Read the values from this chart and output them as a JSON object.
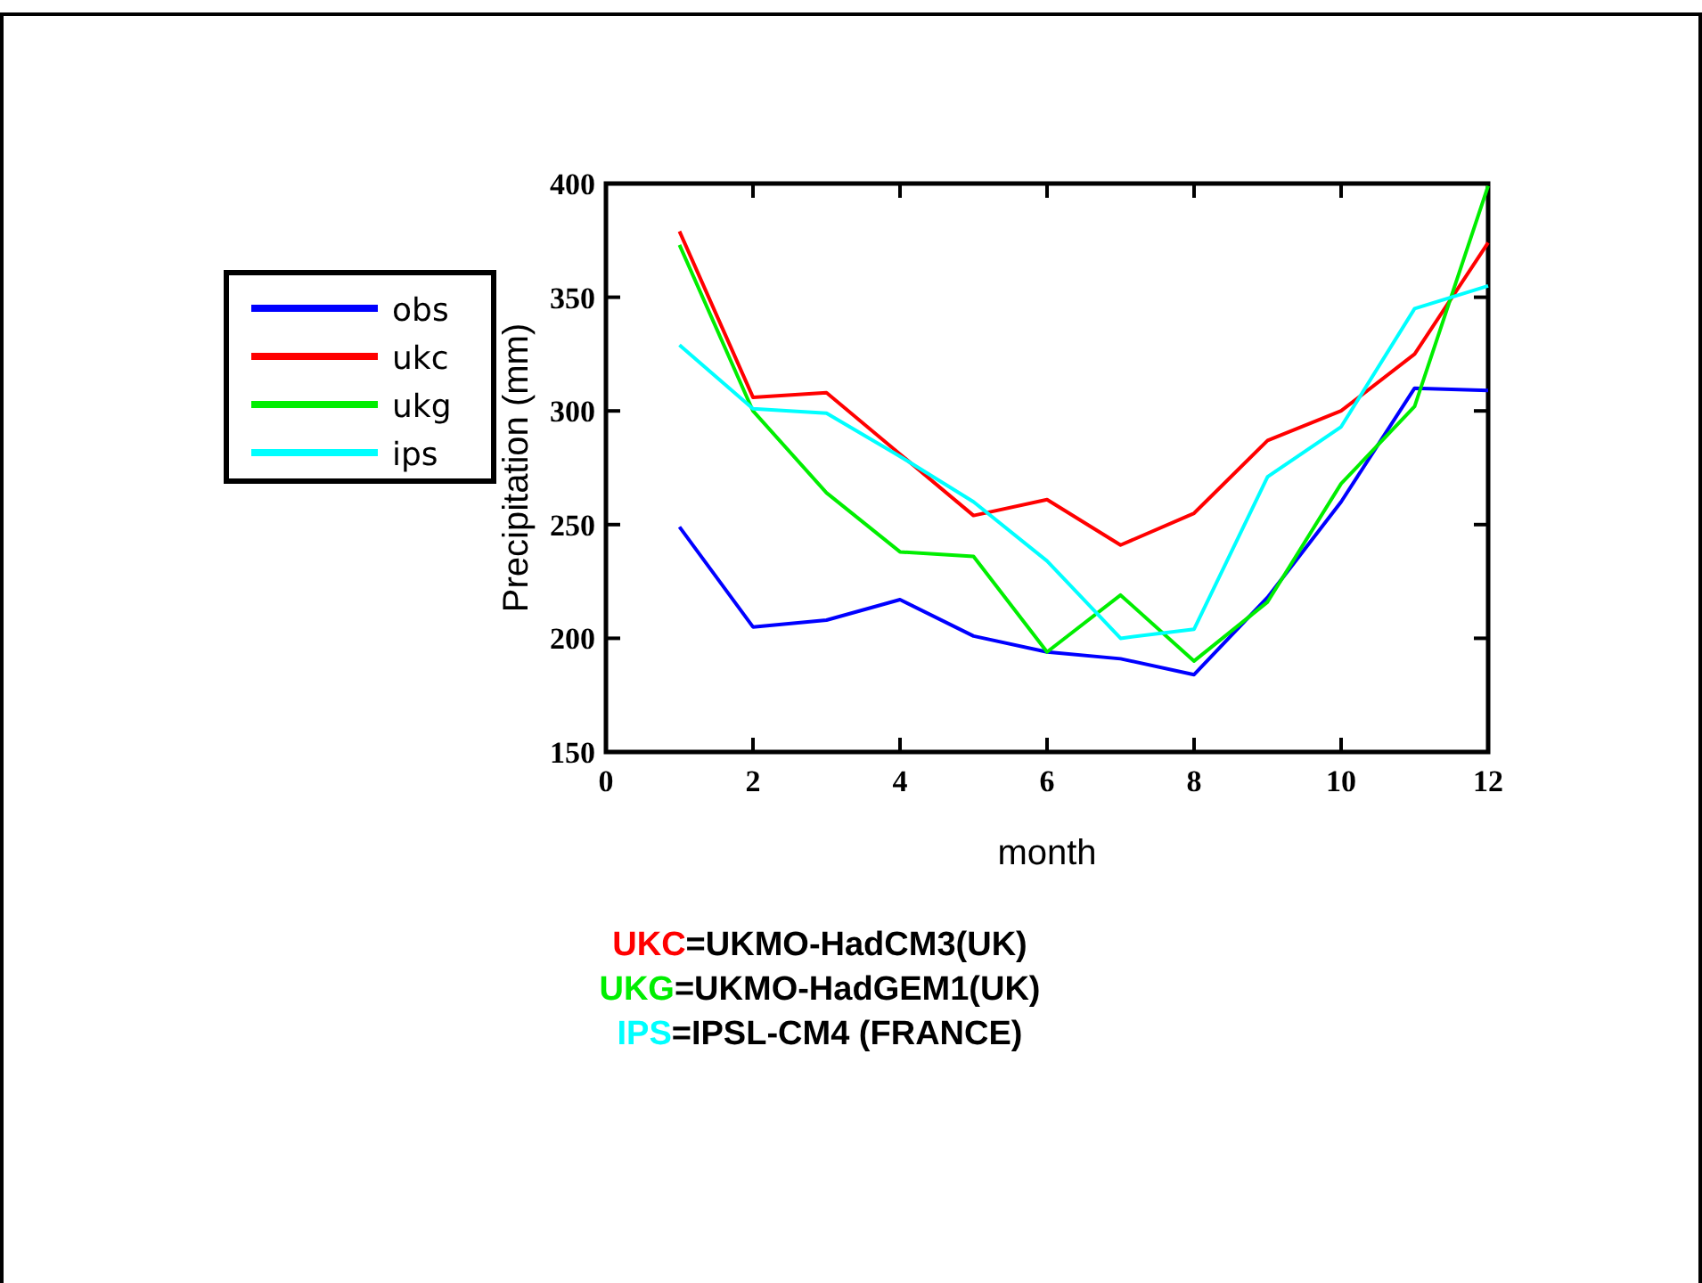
{
  "chart_data": {
    "type": "line",
    "xlabel": "month",
    "ylabel": "Precipitation (mm)",
    "x": [
      1,
      2,
      3,
      4,
      5,
      6,
      7,
      8,
      9,
      10,
      11,
      12
    ],
    "xlim": [
      0,
      12
    ],
    "xticks": [
      0,
      2,
      4,
      6,
      8,
      10,
      12
    ],
    "ylim": [
      150,
      400
    ],
    "yticks": [
      150,
      200,
      250,
      300,
      350,
      400
    ],
    "grid": false,
    "legend": "top left",
    "marker": "none",
    "line_style": "solid",
    "series": [
      {
        "name": "obs",
        "color": "#0000ff",
        "values": [
          249,
          205,
          208,
          217,
          201,
          194,
          191,
          184,
          218,
          260,
          310,
          309
        ]
      },
      {
        "name": "ukc",
        "color": "#ff0000",
        "values": [
          379,
          306,
          308,
          281,
          254,
          261,
          241,
          255,
          287,
          300,
          325,
          374
        ]
      },
      {
        "name": "ukg",
        "color": "#00ee00",
        "values": [
          373,
          300,
          264,
          238,
          236,
          194,
          219,
          190,
          216,
          268,
          302,
          399
        ]
      },
      {
        "name": "ips",
        "color": "#00ffff",
        "values": [
          329,
          301,
          299,
          280,
          260,
          234,
          200,
          204,
          271,
          293,
          345,
          355
        ]
      }
    ],
    "annotations": [
      "UKC=UKMO-HadCM3(UK)",
      "UKG=UKMO-HadGEM1(UK)",
      "IPS=IPSL-CM4 (FRANCE)"
    ]
  }
}
